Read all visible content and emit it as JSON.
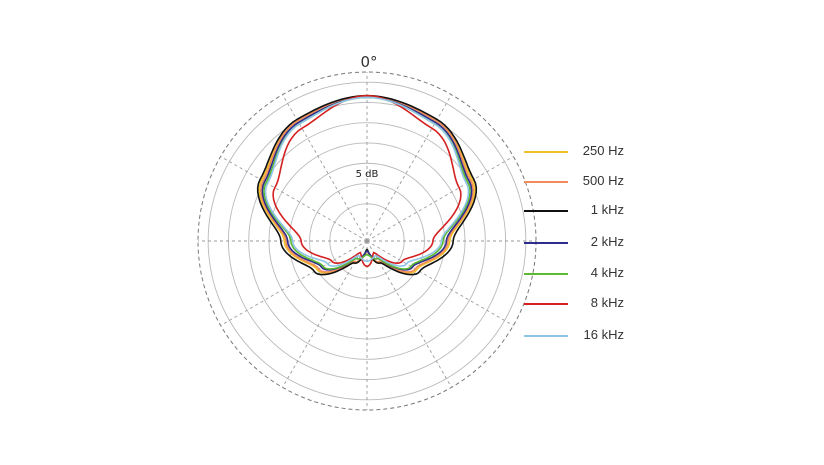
{
  "chart_data": {
    "type": "polar",
    "top_label": "0°",
    "db_label": "5 dB",
    "grid": true,
    "legend_position": "right",
    "angles_deg": [
      0,
      30,
      60,
      90,
      120,
      150,
      180
    ],
    "series": [
      {
        "name": "250 Hz",
        "color": "#f2c12e",
        "radius_fraction": [
          0.86,
          0.82,
          0.72,
          0.49,
          0.34,
          0.15,
          0.05
        ]
      },
      {
        "name": "500 Hz",
        "color": "#f28c5a",
        "radius_fraction": [
          0.86,
          0.82,
          0.71,
          0.48,
          0.33,
          0.14,
          0.06
        ]
      },
      {
        "name": "1 kHz",
        "color": "#111111",
        "radius_fraction": [
          0.86,
          0.83,
          0.73,
          0.51,
          0.36,
          0.15,
          0.05
        ]
      },
      {
        "name": "2 kHz",
        "color": "#2c2c8c",
        "radius_fraction": [
          0.85,
          0.81,
          0.7,
          0.47,
          0.31,
          0.12,
          0.06
        ]
      },
      {
        "name": "4 kHz",
        "color": "#5db832",
        "radius_fraction": [
          0.85,
          0.8,
          0.69,
          0.45,
          0.3,
          0.12,
          0.08
        ]
      },
      {
        "name": "8 kHz",
        "color": "#d42020",
        "radius_fraction": [
          0.86,
          0.77,
          0.63,
          0.39,
          0.24,
          0.08,
          0.15
        ]
      },
      {
        "name": "16 kHz",
        "color": "#8fc4e6",
        "radius_fraction": [
          0.85,
          0.8,
          0.68,
          0.44,
          0.27,
          0.1,
          0.12
        ]
      }
    ]
  }
}
